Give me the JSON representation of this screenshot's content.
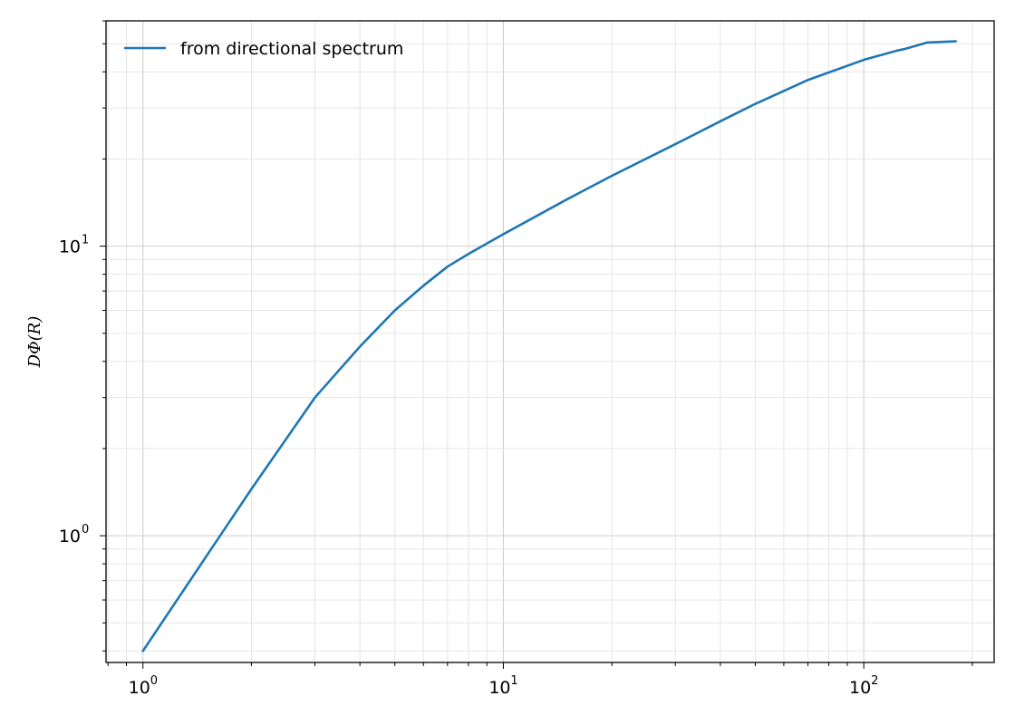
{
  "chart_data": {
    "type": "line",
    "title": "",
    "xlabel": "",
    "ylabel": "DΦ(R)",
    "x_scale": "log",
    "y_scale": "log",
    "xlim": [
      0.79,
      230
    ],
    "ylim": [
      0.365,
      60
    ],
    "grid": true,
    "legend_position": "top-left",
    "x_ticks": [
      {
        "value": 1,
        "base": "10",
        "exp": "0"
      },
      {
        "value": 10,
        "base": "10",
        "exp": "1"
      },
      {
        "value": 100,
        "base": "10",
        "exp": "2"
      }
    ],
    "y_ticks": [
      {
        "value": 1,
        "base": "10",
        "exp": "0"
      },
      {
        "value": 10,
        "base": "10",
        "exp": "1"
      }
    ],
    "series": [
      {
        "name": "from directional spectrum",
        "color": "#1f77b4",
        "x": [
          1,
          1.5,
          2,
          3,
          4,
          5,
          6,
          7,
          8,
          10,
          15,
          20,
          30,
          40,
          50,
          70,
          100,
          125,
          130,
          150,
          180
        ],
        "y": [
          0.4,
          0.85,
          1.45,
          3.0,
          4.5,
          6.0,
          7.3,
          8.5,
          9.4,
          11.0,
          14.5,
          17.5,
          22.5,
          27.0,
          31.0,
          37.5,
          44.0,
          47.5,
          48.0,
          50.5,
          51.0
        ]
      }
    ]
  }
}
